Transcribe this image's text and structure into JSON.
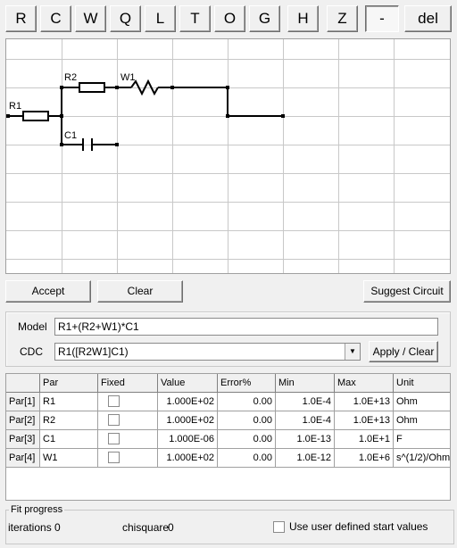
{
  "toolbar": {
    "buttons": [
      "R",
      "C",
      "W",
      "Q",
      "L",
      "T",
      "O",
      "G",
      "H",
      "Z",
      "-",
      "del"
    ]
  },
  "circuit": {
    "labels": {
      "r1": "R1",
      "r2": "R2",
      "w1": "W1",
      "c1": "C1"
    }
  },
  "actions": {
    "accept": "Accept",
    "clear": "Clear",
    "suggest": "Suggest Circuit"
  },
  "model": {
    "label": "Model",
    "value": "R1+(R2+W1)*C1",
    "cdc_label": "CDC",
    "cdc_value": "R1([R2W1]C1)",
    "apply_clear": "Apply / Clear"
  },
  "table": {
    "headers": [
      "",
      "Par",
      "Fixed",
      "Value",
      "Error%",
      "Min",
      "Max",
      "Unit"
    ],
    "rows": [
      {
        "id": "Par[1]",
        "par": "R1",
        "value": "1.000E+02",
        "error": "0.00",
        "min": "1.0E-4",
        "max": "1.0E+13",
        "unit": "Ohm"
      },
      {
        "id": "Par[2]",
        "par": "R2",
        "value": "1.000E+02",
        "error": "0.00",
        "min": "1.0E-4",
        "max": "1.0E+13",
        "unit": "Ohm"
      },
      {
        "id": "Par[3]",
        "par": "C1",
        "value": "1.000E-06",
        "error": "0.00",
        "min": "1.0E-13",
        "max": "1.0E+1",
        "unit": "F"
      },
      {
        "id": "Par[4]",
        "par": "W1",
        "value": "1.000E+02",
        "error": "0.00",
        "min": "1.0E-12",
        "max": "1.0E+6",
        "unit": "s^(1/2)/Ohm"
      }
    ]
  },
  "fit": {
    "title": "Fit progress",
    "iterations_label": "iterations",
    "iterations_value": "0",
    "chisquare_label": "chisquare",
    "chisquare_value": "0",
    "user_defined_label": "Use user defined start values"
  }
}
